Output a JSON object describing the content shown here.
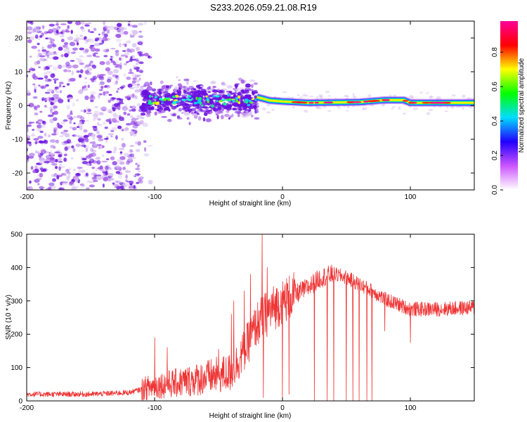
{
  "title": "S233.2026.059.21.08.R19",
  "colors": {
    "line": "#ee3333",
    "frame": "#000000",
    "scatter_light": "#d9c2f2",
    "scatter_mid": "#a45be8",
    "scatter_dark": "#6a10e0"
  },
  "chart_data": [
    {
      "type": "heatmap",
      "name": "spectrogram",
      "xlabel": "Height of straight line (km)",
      "ylabel": "Frequency (Hz)",
      "xlim": [
        -200,
        150
      ],
      "ylim": [
        -25,
        25
      ],
      "xticks": [
        -200,
        -100,
        0,
        100
      ],
      "yticks": [
        -20,
        -10,
        0,
        10,
        20
      ],
      "xtick_labels": [
        "-200",
        "-100",
        "0",
        "100"
      ],
      "ytick_labels": [
        "-20",
        "-10",
        "0",
        "10",
        "20"
      ],
      "colorbar": {
        "label": "Normalized spectral amplitude",
        "range": [
          0,
          1
        ],
        "ticks": [
          "0.0",
          "0.2",
          "0.4",
          "0.6",
          "0.8"
        ],
        "stops": [
          "#ffffff",
          "#cc55ff",
          "#2200ff",
          "#00ddff",
          "#00ff00",
          "#ffff00",
          "#ff0000",
          "#ff0099"
        ]
      },
      "regions": [
        {
          "x_range": [
            -200,
            -110
          ],
          "freq_spread_hz": 25,
          "description": "noise"
        },
        {
          "x_range": [
            -110,
            -20
          ],
          "freq_spread_hz": 6,
          "center_hz": 1.5
        },
        {
          "x_range": [
            -20,
            150
          ],
          "freq_spread_hz": 1.5,
          "center_hz": 1.0
        }
      ],
      "ridge": [
        {
          "x": -20,
          "y": 2.5
        },
        {
          "x": -10,
          "y": 1.5
        },
        {
          "x": 0,
          "y": 1.2
        },
        {
          "x": 20,
          "y": 0.8
        },
        {
          "x": 60,
          "y": 1.0
        },
        {
          "x": 80,
          "y": 1.6
        },
        {
          "x": 95,
          "y": 1.6
        },
        {
          "x": 100,
          "y": 0.8
        },
        {
          "x": 115,
          "y": 0.8
        },
        {
          "x": 150,
          "y": 0.8
        }
      ]
    },
    {
      "type": "line",
      "name": "snr",
      "xlabel": "Height of straight line (km)",
      "ylabel": "SNR (10 * v/v)",
      "xlim": [
        -200,
        150
      ],
      "ylim": [
        0,
        500
      ],
      "xticks": [
        -200,
        -100,
        0,
        100
      ],
      "yticks": [
        0,
        100,
        200,
        300,
        400,
        500
      ],
      "xtick_labels": [
        "-200",
        "-100",
        "0",
        "100"
      ],
      "ytick_labels": [
        "0",
        "100",
        "200",
        "300",
        "400",
        "500"
      ],
      "envelope": [
        {
          "x": -200,
          "y": 20
        },
        {
          "x": -150,
          "y": 20
        },
        {
          "x": -120,
          "y": 25
        },
        {
          "x": -100,
          "y": 45
        },
        {
          "x": -80,
          "y": 55
        },
        {
          "x": -60,
          "y": 70
        },
        {
          "x": -40,
          "y": 85
        },
        {
          "x": -30,
          "y": 150
        },
        {
          "x": -20,
          "y": 230
        },
        {
          "x": -10,
          "y": 270
        },
        {
          "x": 0,
          "y": 300
        },
        {
          "x": 10,
          "y": 320
        },
        {
          "x": 20,
          "y": 340
        },
        {
          "x": 30,
          "y": 370
        },
        {
          "x": 40,
          "y": 380
        },
        {
          "x": 50,
          "y": 370
        },
        {
          "x": 60,
          "y": 350
        },
        {
          "x": 70,
          "y": 330
        },
        {
          "x": 80,
          "y": 305
        },
        {
          "x": 90,
          "y": 290
        },
        {
          "x": 100,
          "y": 275
        },
        {
          "x": 120,
          "y": 275
        },
        {
          "x": 150,
          "y": 280
        }
      ],
      "spikes_up": [
        {
          "x": -100,
          "y": 190
        },
        {
          "x": -90,
          "y": 160
        },
        {
          "x": -50,
          "y": 155
        },
        {
          "x": -40,
          "y": 260
        },
        {
          "x": -38,
          "y": 300
        },
        {
          "x": -30,
          "y": 330
        },
        {
          "x": -25,
          "y": 380
        },
        {
          "x": -16,
          "y": 500
        },
        {
          "x": -12,
          "y": 400
        },
        {
          "x": 5,
          "y": 460
        },
        {
          "x": 35,
          "y": 445
        }
      ],
      "spikes_down": [
        {
          "x": -15,
          "y": 10
        },
        {
          "x": 0,
          "y": 0
        },
        {
          "x": 5,
          "y": 20
        },
        {
          "x": 25,
          "y": 0
        },
        {
          "x": 35,
          "y": 0
        },
        {
          "x": 40,
          "y": 0
        },
        {
          "x": 50,
          "y": 0
        },
        {
          "x": 55,
          "y": 0
        },
        {
          "x": 60,
          "y": 0
        },
        {
          "x": 66,
          "y": 0
        },
        {
          "x": 70,
          "y": 0
        },
        {
          "x": 80,
          "y": 210
        },
        {
          "x": 100,
          "y": 175
        }
      ]
    }
  ]
}
